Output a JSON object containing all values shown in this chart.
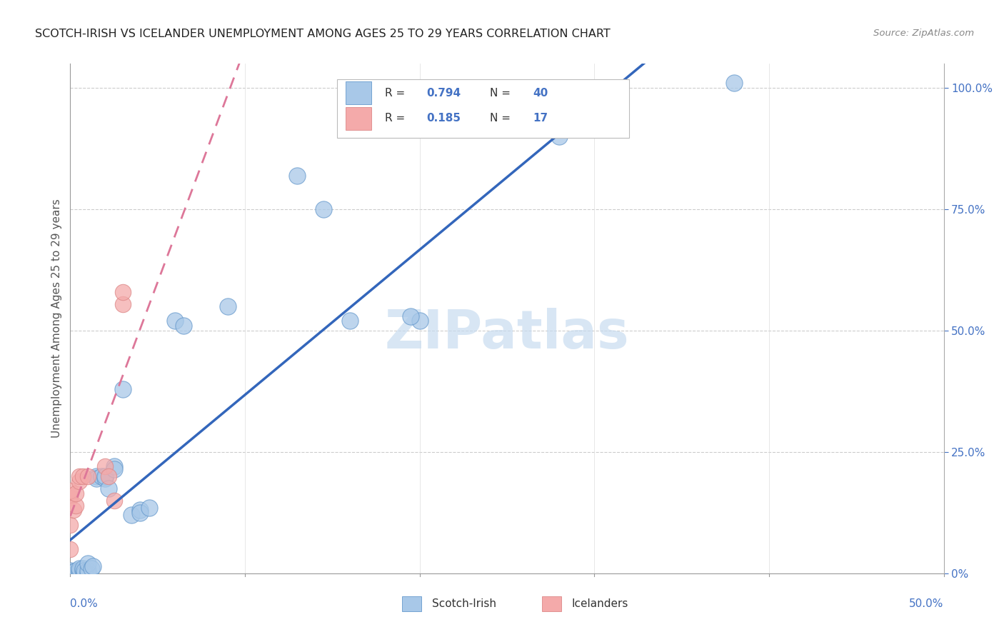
{
  "title": "SCOTCH-IRISH VS ICELANDER UNEMPLOYMENT AMONG AGES 25 TO 29 YEARS CORRELATION CHART",
  "source": "Source: ZipAtlas.com",
  "ylabel": "Unemployment Among Ages 25 to 29 years",
  "xmin": 0.0,
  "xmax": 0.5,
  "ymin": 0.0,
  "ymax": 1.05,
  "scotch_irish_R": 0.794,
  "scotch_irish_N": 40,
  "icelander_R": 0.185,
  "icelander_N": 17,
  "blue_color": "#A8C8E8",
  "blue_edge_color": "#6699CC",
  "blue_line_color": "#3366BB",
  "pink_color": "#F4AAAA",
  "pink_edge_color": "#DD8888",
  "pink_line_color": "#DD7799",
  "watermark_color": "#C8DCF0",
  "legend_label_1": "Scotch-Irish",
  "legend_label_2": "Icelanders",
  "scotch_irish_points": [
    [
      0.0,
      0.0
    ],
    [
      0.0,
      0.005
    ],
    [
      0.002,
      0.002
    ],
    [
      0.003,
      0.0
    ],
    [
      0.003,
      0.005
    ],
    [
      0.005,
      0.0
    ],
    [
      0.005,
      0.005
    ],
    [
      0.005,
      0.01
    ],
    [
      0.007,
      0.005
    ],
    [
      0.007,
      0.01
    ],
    [
      0.008,
      0.0
    ],
    [
      0.008,
      0.005
    ],
    [
      0.01,
      0.0
    ],
    [
      0.01,
      0.005
    ],
    [
      0.01,
      0.02
    ],
    [
      0.012,
      0.01
    ],
    [
      0.013,
      0.015
    ],
    [
      0.015,
      0.2
    ],
    [
      0.015,
      0.195
    ],
    [
      0.018,
      0.2
    ],
    [
      0.02,
      0.195
    ],
    [
      0.02,
      0.2
    ],
    [
      0.022,
      0.175
    ],
    [
      0.025,
      0.22
    ],
    [
      0.025,
      0.215
    ],
    [
      0.03,
      0.38
    ],
    [
      0.035,
      0.12
    ],
    [
      0.04,
      0.13
    ],
    [
      0.04,
      0.125
    ],
    [
      0.045,
      0.135
    ],
    [
      0.06,
      0.52
    ],
    [
      0.065,
      0.51
    ],
    [
      0.09,
      0.55
    ],
    [
      0.13,
      0.82
    ],
    [
      0.145,
      0.75
    ],
    [
      0.16,
      0.52
    ],
    [
      0.2,
      0.52
    ],
    [
      0.195,
      0.53
    ],
    [
      0.28,
      0.9
    ],
    [
      0.38,
      1.01
    ]
  ],
  "icelander_points": [
    [
      0.0,
      0.05
    ],
    [
      0.0,
      0.1
    ],
    [
      0.0,
      0.155
    ],
    [
      0.0,
      0.16
    ],
    [
      0.0,
      0.17
    ],
    [
      0.002,
      0.13
    ],
    [
      0.003,
      0.14
    ],
    [
      0.003,
      0.165
    ],
    [
      0.005,
      0.19
    ],
    [
      0.005,
      0.2
    ],
    [
      0.007,
      0.2
    ],
    [
      0.01,
      0.2
    ],
    [
      0.02,
      0.22
    ],
    [
      0.022,
      0.2
    ],
    [
      0.025,
      0.15
    ],
    [
      0.03,
      0.555
    ],
    [
      0.03,
      0.58
    ]
  ]
}
